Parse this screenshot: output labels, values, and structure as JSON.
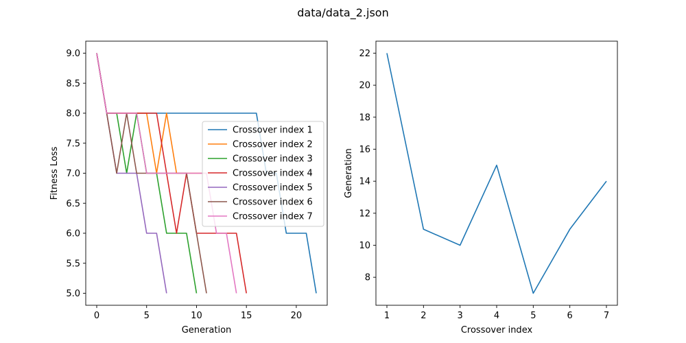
{
  "figure": {
    "suptitle": "data/data_2.json"
  },
  "chart_data": [
    {
      "type": "line",
      "xlabel": "Generation",
      "ylabel": "Fitness Loss",
      "xlim": [
        -1.1,
        23.1
      ],
      "ylim": [
        4.8,
        9.2
      ],
      "xticks": [
        0,
        5,
        10,
        15,
        20
      ],
      "yticks": [
        5.0,
        5.5,
        6.0,
        6.5,
        7.0,
        7.5,
        8.0,
        8.5,
        9.0
      ],
      "legend_position": "right",
      "series": [
        {
          "name": "Crossover index 1",
          "color": "#1f77b4",
          "x": [
            0,
            1,
            2,
            3,
            4,
            5,
            6,
            7,
            8,
            9,
            10,
            11,
            12,
            13,
            14,
            15,
            16,
            17,
            18,
            19,
            20,
            21,
            22
          ],
          "y": [
            9,
            8,
            8,
            8,
            8,
            8,
            8,
            8,
            8,
            8,
            8,
            8,
            8,
            8,
            8,
            8,
            8,
            7,
            7,
            6,
            6,
            6,
            5
          ]
        },
        {
          "name": "Crossover index 2",
          "color": "#ff7f0e",
          "x": [
            0,
            1,
            2,
            3,
            4,
            5,
            6,
            7,
            8,
            9,
            10,
            11
          ],
          "y": [
            9,
            8,
            8,
            8,
            8,
            8,
            7,
            8,
            7,
            7,
            7,
            7
          ]
        },
        {
          "name": "Crossover index 3",
          "color": "#2ca02c",
          "x": [
            0,
            1,
            2,
            3,
            4,
            5,
            6,
            7,
            8,
            9,
            10
          ],
          "y": [
            9,
            8,
            8,
            7,
            8,
            7,
            7,
            6,
            6,
            6,
            5
          ]
        },
        {
          "name": "Crossover index 4",
          "color": "#d62728",
          "x": [
            0,
            1,
            2,
            3,
            4,
            5,
            6,
            7,
            8,
            9,
            10,
            11,
            12,
            13,
            14,
            15
          ],
          "y": [
            9,
            8,
            8,
            8,
            8,
            8,
            8,
            7,
            6,
            7,
            6,
            6,
            6,
            6,
            6,
            5
          ]
        },
        {
          "name": "Crossover index 5",
          "color": "#9467bd",
          "x": [
            0,
            1,
            2,
            3,
            4,
            5,
            6,
            7
          ],
          "y": [
            9,
            8,
            7,
            7,
            7,
            6,
            6,
            5
          ]
        },
        {
          "name": "Crossover index 6",
          "color": "#8c564b",
          "x": [
            0,
            1,
            2,
            3,
            4,
            5,
            6,
            7,
            8,
            9,
            10,
            11
          ],
          "y": [
            9,
            8,
            7,
            8,
            7,
            7,
            7,
            7,
            7,
            7,
            6,
            5
          ]
        },
        {
          "name": "Crossover index 7",
          "color": "#e377c2",
          "x": [
            0,
            1,
            2,
            3,
            4,
            5,
            6,
            7,
            8,
            9,
            10,
            11,
            12,
            13,
            14
          ],
          "y": [
            9,
            8,
            8,
            8,
            8,
            7,
            7,
            7,
            7,
            7,
            7,
            7,
            6,
            6,
            5
          ]
        }
      ]
    },
    {
      "type": "line",
      "xlabel": "Crossover index",
      "ylabel": "Generation",
      "xlim": [
        0.7,
        7.3
      ],
      "ylim": [
        6.25,
        22.75
      ],
      "xticks": [
        1,
        2,
        3,
        4,
        5,
        6,
        7
      ],
      "yticks": [
        8,
        10,
        12,
        14,
        16,
        18,
        20,
        22
      ],
      "series": [
        {
          "color": "#1f77b4",
          "x": [
            1,
            2,
            3,
            4,
            5,
            6,
            7
          ],
          "y": [
            22,
            11,
            10,
            15,
            7,
            11,
            14
          ]
        }
      ]
    }
  ]
}
